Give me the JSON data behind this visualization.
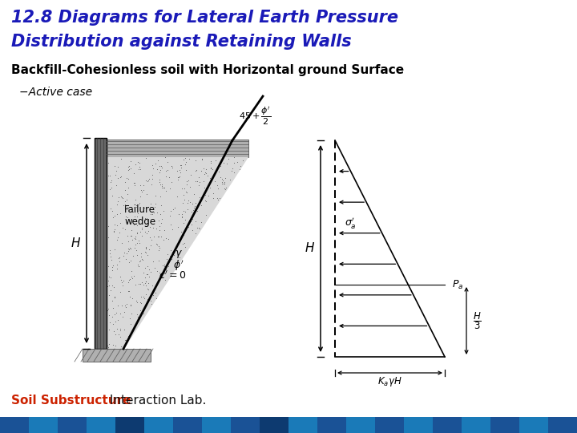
{
  "title_line1": "12.8 Diagrams for Lateral Earth Pressure",
  "title_line2": "Distribution against Retaining Walls",
  "subtitle": "Backfill-Cohesionless soil with Horizontal ground Surface",
  "case_label": "−Active case",
  "footer_soil": "Soil Substructure",
  "footer_lab": " Interaction Lab.",
  "bg_color": "#ffffff",
  "title_color": "#1a1ab8",
  "subtitle_color": "#000000",
  "footer_soil_color": "#cc2200",
  "footer_lab_color": "#111111"
}
